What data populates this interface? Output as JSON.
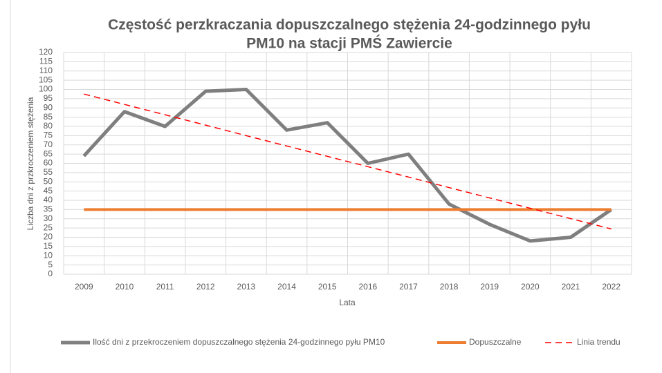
{
  "chart_data": {
    "type": "line",
    "title": [
      "Częstość perzkraczania dopuszczalnego stężenia 24-godzinnego pyłu",
      "PM10 na stacji PMŚ Zawiercie"
    ],
    "x_label": "Lata",
    "y_label": "Liczba dni z przkroczeniem stężenia",
    "categories": [
      "2009",
      "2010",
      "2011",
      "2012",
      "2013",
      "2014",
      "2015",
      "2016",
      "2017",
      "2018",
      "2019",
      "2020",
      "2021",
      "2022"
    ],
    "series": [
      {
        "name": "Ilość dni z przekroczeniem dopuszczalnego stężenia 24-godzinnego pyłu PM10",
        "color": "#7f7f7f",
        "width": 5,
        "dashed": false,
        "values": [
          64,
          88,
          80,
          99,
          100,
          78,
          82,
          60,
          65,
          38,
          27,
          18,
          20,
          35
        ]
      },
      {
        "name": "Dopuszczalne",
        "color": "#ed7d31",
        "width": 4,
        "dashed": false,
        "values": [
          35,
          35,
          35,
          35,
          35,
          35,
          35,
          35,
          35,
          35,
          35,
          35,
          35,
          35
        ]
      },
      {
        "name": "Linia trendu",
        "color": "#ff0000",
        "width": 1.5,
        "dashed": true,
        "values": [
          97.5,
          91.9,
          86.3,
          80.7,
          75.0,
          69.4,
          63.8,
          58.2,
          52.6,
          46.9,
          41.3,
          35.7,
          30.1,
          24.5
        ]
      }
    ],
    "ylim": [
      0,
      120
    ],
    "yticks": [
      0,
      5,
      10,
      15,
      20,
      25,
      30,
      35,
      40,
      45,
      50,
      55,
      60,
      65,
      70,
      75,
      80,
      85,
      90,
      95,
      100,
      105,
      110,
      115,
      120
    ],
    "grid": true,
    "legend": "bottom"
  }
}
